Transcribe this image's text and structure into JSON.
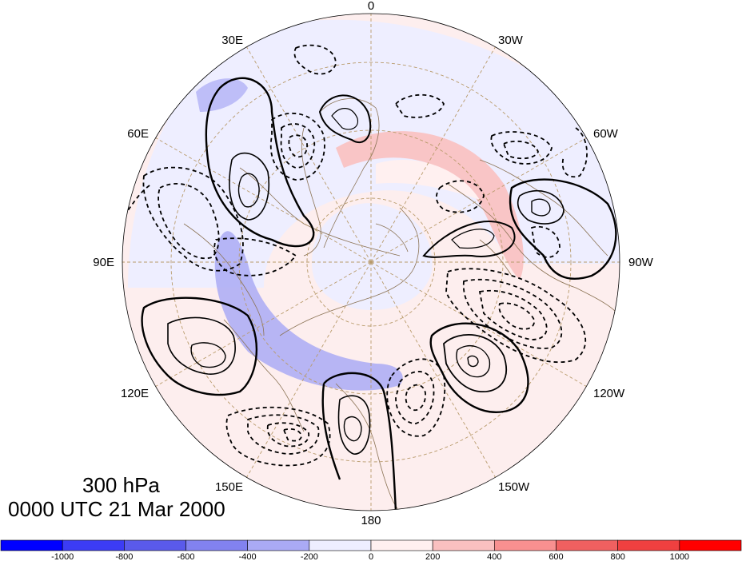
{
  "title": {
    "level": "300 hPa",
    "time": "0000 UTC 21 Mar 2000"
  },
  "projection": "north polar stereographic",
  "longitude_labels": [
    "0",
    "30W",
    "60W",
    "90W",
    "120W",
    "150W",
    "180",
    "150E",
    "120E",
    "90E",
    "60E",
    "30E"
  ],
  "colorbar": {
    "colors": [
      "#0000ff",
      "#3c3cf5",
      "#5a5aeb",
      "#8282f0",
      "#aaaaf5",
      "#eeeeff",
      "#fff0f0",
      "#fac0c0",
      "#f89090",
      "#f06060",
      "#f04040",
      "#ff0000"
    ],
    "tick_labels": [
      "-1000",
      "-800",
      "-600",
      "-400",
      "-200",
      "0",
      "200",
      "400",
      "600",
      "800",
      "1000"
    ]
  },
  "colors": {
    "coastline": "#8b7355",
    "gridline": "#b89a6a",
    "contour": "#000000"
  }
}
